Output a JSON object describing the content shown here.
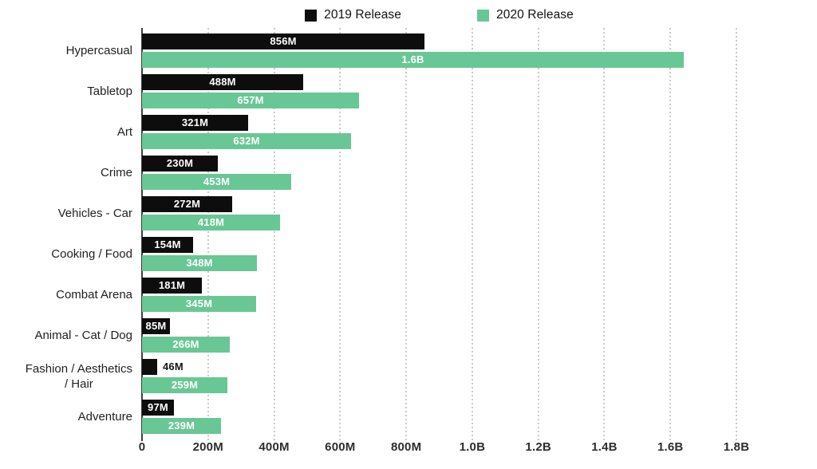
{
  "chart_data": {
    "type": "bar",
    "orientation": "horizontal",
    "title": "",
    "legend_position": "top",
    "grid": "dotted-vertical",
    "categories": [
      "Hypercasual",
      "Tabletop",
      "Art",
      "Crime",
      "Vehicles - Car",
      "Cooking / Food",
      "Combat Arena",
      "Animal - Cat / Dog",
      "Fashion / Aesthetics / Hair",
      "Adventure"
    ],
    "categories_display": [
      [
        "Hypercasual"
      ],
      [
        "Tabletop"
      ],
      [
        "Art"
      ],
      [
        "Crime"
      ],
      [
        "Vehicles - Car"
      ],
      [
        "Cooking / Food"
      ],
      [
        "Combat Arena"
      ],
      [
        "Animal - Cat / Dog"
      ],
      [
        "Fashion / Aesthetics",
        "/ Hair"
      ],
      [
        "Adventure"
      ]
    ],
    "series": [
      {
        "name": "2019 Release",
        "color": "#0d0d0d",
        "values_m": [
          856,
          488,
          321,
          230,
          272,
          154,
          181,
          85,
          46,
          97
        ],
        "labels": [
          "856M",
          "488M",
          "321M",
          "230M",
          "272M",
          "154M",
          "181M",
          "85M",
          "46M",
          "97M"
        ]
      },
      {
        "name": "2020 Release",
        "color": "#69C795",
        "values_m": [
          1640,
          657,
          632,
          453,
          418,
          348,
          345,
          266,
          259,
          239
        ],
        "labels": [
          "1.6B",
          "657M",
          "632M",
          "453M",
          "418M",
          "348M",
          "345M",
          "266M",
          "259M",
          "239M"
        ]
      }
    ],
    "x_axis": {
      "ticks": [
        "0",
        "200M",
        "400M",
        "600M",
        "800M",
        "1.0B",
        "1.2B",
        "1.4B",
        "1.6B",
        "1.8B"
      ],
      "tick_values_m": [
        0,
        200,
        400,
        600,
        800,
        1000,
        1200,
        1400,
        1600,
        1800
      ],
      "max_m": 1800
    },
    "colors": {
      "grid": "#c9c9c9",
      "axis": "#3f3f3f",
      "bar_label_inside": "#ffffff",
      "bar_label_outside": "#141414"
    }
  }
}
